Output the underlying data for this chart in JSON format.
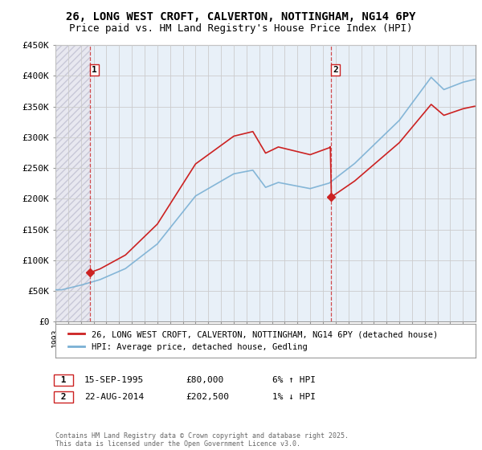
{
  "title_line1": "26, LONG WEST CROFT, CALVERTON, NOTTINGHAM, NG14 6PY",
  "title_line2": "Price paid vs. HM Land Registry's House Price Index (HPI)",
  "title_fontsize": 10,
  "subtitle_fontsize": 9,
  "ylim": [
    0,
    450000
  ],
  "yticks": [
    0,
    50000,
    100000,
    150000,
    200000,
    250000,
    300000,
    350000,
    400000,
    450000
  ],
  "ytick_labels": [
    "£0",
    "£50K",
    "£100K",
    "£150K",
    "£200K",
    "£250K",
    "£300K",
    "£350K",
    "£400K",
    "£450K"
  ],
  "hpi_color": "#7ab0d4",
  "property_color": "#cc2222",
  "hatch_color": "#c8c8d8",
  "hatch_bg": "#e8e8f0",
  "plain_bg": "#e8f0f8",
  "grid_color": "#cccccc",
  "transaction1_x": 1995.71,
  "transaction1_y": 80000,
  "transaction1_label": "1",
  "transaction2_x": 2014.64,
  "transaction2_y": 202500,
  "transaction2_label": "2",
  "legend_property": "26, LONG WEST CROFT, CALVERTON, NOTTINGHAM, NG14 6PY (detached house)",
  "legend_hpi": "HPI: Average price, detached house, Gedling",
  "annotation1_date": "15-SEP-1995",
  "annotation1_price": "£80,000",
  "annotation1_hpi": "6% ↑ HPI",
  "annotation2_date": "22-AUG-2014",
  "annotation2_price": "£202,500",
  "annotation2_hpi": "1% ↓ HPI",
  "footer": "Contains HM Land Registry data © Crown copyright and database right 2025.\nThis data is licensed under the Open Government Licence v3.0.",
  "xmin": 1993,
  "xmax": 2026
}
